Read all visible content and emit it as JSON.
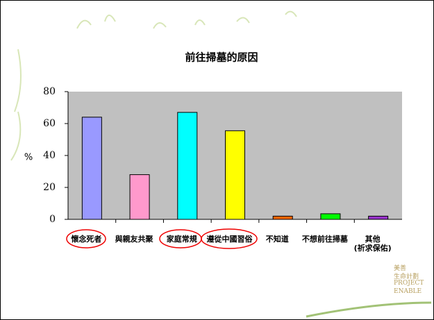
{
  "chart_data": {
    "type": "bar",
    "title": "前往掃墓的原因",
    "y_label": "%",
    "categories": [
      "懷念死者",
      "與親友共聚",
      "家庭常規",
      "遵從中國習俗",
      "不知道",
      "不想前往掃墓",
      "其他\n(祈求保佑)"
    ],
    "values": [
      64,
      28,
      67,
      55.5,
      2,
      3.5,
      2
    ],
    "colors": [
      "#9999ff",
      "#ff99cc",
      "#00ffff",
      "#ffff00",
      "#ff6600",
      "#00ff00",
      "#9933cc"
    ],
    "ylim": [
      0,
      80
    ],
    "yticks": [
      0,
      20,
      40,
      60,
      80
    ],
    "grid": false,
    "plot_background": "#c0c0c0"
  },
  "slide": {
    "logo": [
      "美善",
      "生命計劃",
      "PROJECT",
      "ENABLE"
    ]
  }
}
